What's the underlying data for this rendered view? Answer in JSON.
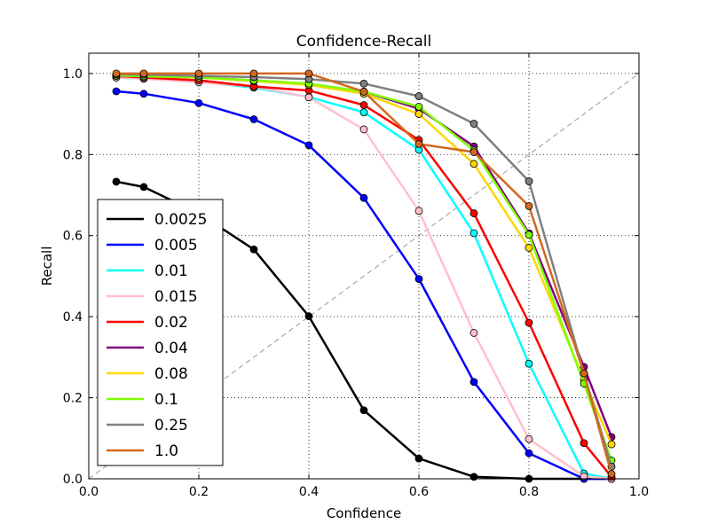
{
  "chart_data": {
    "type": "line",
    "title": "Confidence-Recall",
    "xlabel": "Confidence",
    "ylabel": "Recall",
    "xlim": [
      0.0,
      1.0
    ],
    "ylim": [
      0.0,
      1.05
    ],
    "xticks": [
      "0.0",
      "0.2",
      "0.4",
      "0.6",
      "0.8",
      "1.0"
    ],
    "yticks": [
      "0.0",
      "0.2",
      "0.4",
      "0.6",
      "0.8",
      "1.0"
    ],
    "grid": true,
    "legend_position": "lower-left",
    "reference_line": {
      "x": [
        0.0,
        1.0
      ],
      "y": [
        0.0,
        1.0
      ],
      "style": "dashed",
      "color": "#999999"
    },
    "x": [
      0.05,
      0.1,
      0.2,
      0.3,
      0.4,
      0.5,
      0.6,
      0.7,
      0.8,
      0.9,
      0.95
    ],
    "series": [
      {
        "name": "0.0025",
        "color": "#000000",
        "values": [
          0.733,
          0.72,
          0.655,
          0.566,
          0.401,
          0.169,
          0.05,
          0.005,
          0.0,
          0.0,
          0.0
        ]
      },
      {
        "name": "0.005",
        "color": "#0000ff",
        "values": [
          0.956,
          0.95,
          0.927,
          0.887,
          0.823,
          0.693,
          0.493,
          0.239,
          0.063,
          0.0,
          0.0
        ]
      },
      {
        "name": "0.01",
        "color": "#00ffff",
        "values": [
          0.99,
          0.987,
          0.98,
          0.965,
          0.942,
          0.904,
          0.812,
          0.606,
          0.284,
          0.013,
          0.0
        ]
      },
      {
        "name": "0.015",
        "color": "#ffc0cb",
        "values": [
          0.99,
          0.987,
          0.978,
          0.968,
          0.941,
          0.862,
          0.661,
          0.36,
          0.098,
          0.006,
          0.0
        ]
      },
      {
        "name": "0.02",
        "color": "#ff0000",
        "values": [
          0.994,
          0.99,
          0.983,
          0.968,
          0.958,
          0.922,
          0.836,
          0.655,
          0.385,
          0.088,
          0.005
        ]
      },
      {
        "name": "0.04",
        "color": "#800080",
        "values": [
          0.996,
          0.994,
          0.99,
          0.983,
          0.974,
          0.955,
          0.913,
          0.82,
          0.606,
          0.276,
          0.103
        ]
      },
      {
        "name": "0.08",
        "color": "#ffd700",
        "values": [
          0.996,
          0.994,
          0.99,
          0.981,
          0.972,
          0.95,
          0.9,
          0.777,
          0.57,
          0.244,
          0.085
        ]
      },
      {
        "name": "0.1",
        "color": "#7fff00",
        "values": [
          0.995,
          0.993,
          0.99,
          0.983,
          0.975,
          0.955,
          0.918,
          0.81,
          0.602,
          0.235,
          0.045
        ]
      },
      {
        "name": "0.25",
        "color": "#808080",
        "values": [
          0.998,
          0.997,
          0.994,
          0.991,
          0.986,
          0.975,
          0.944,
          0.876,
          0.734,
          0.26,
          0.03
        ]
      },
      {
        "name": "1.0",
        "color": "#d2691e",
        "values": [
          1.0,
          1.0,
          1.0,
          1.0,
          1.0,
          0.955,
          0.826,
          0.806,
          0.673,
          0.26,
          0.012
        ]
      }
    ]
  }
}
